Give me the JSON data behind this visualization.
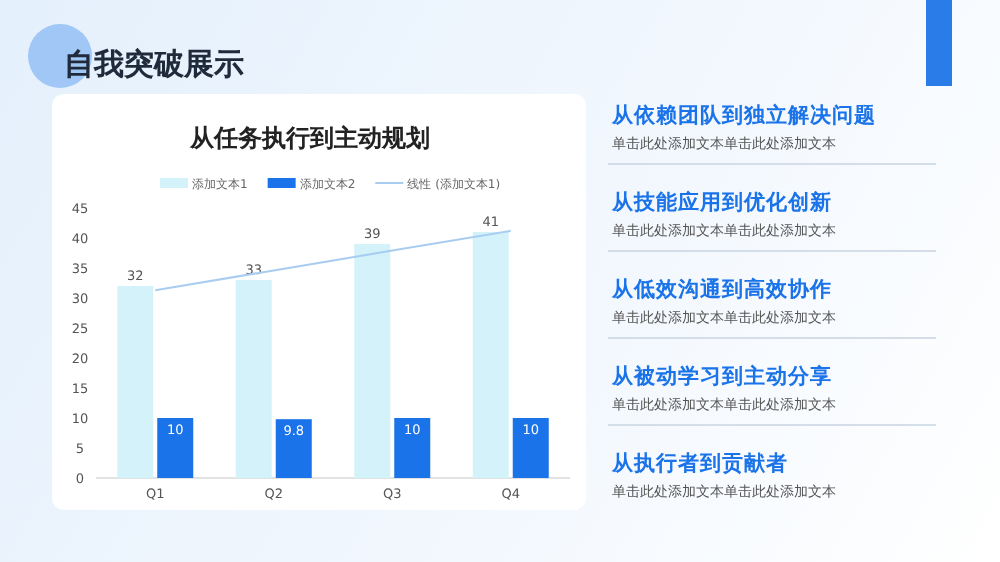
{
  "chart_data": {
    "type": "bar",
    "title": "从任务执行到主动规划",
    "categories": [
      "Q1",
      "Q2",
      "Q3",
      "Q4"
    ],
    "series": [
      {
        "name": "添加文本1",
        "color": "#d4f2f9",
        "values": [
          32,
          33,
          39,
          41
        ],
        "value_labels": [
          "32",
          "33",
          "39",
          "41"
        ]
      },
      {
        "name": "添加文本2",
        "color": "#1a73e8",
        "values": [
          10,
          9.8,
          10,
          10
        ],
        "value_labels": [
          "10",
          "9.8",
          "10",
          "10"
        ]
      },
      {
        "name": "线性 (添加文本1)",
        "type": "line",
        "color": "#a8cdf0",
        "values": [
          31.3,
          34.6,
          37.9,
          41.2
        ]
      }
    ],
    "ylim": [
      0,
      45
    ],
    "yticks": [
      0,
      5,
      10,
      15,
      20,
      25,
      30,
      35,
      40,
      45
    ],
    "grid": false,
    "legend": "top",
    "annotations": [
      "自我突破展示",
      "从依赖团队到独立解决问题",
      "单击此处添加文本单击此处添加文本",
      "从技能应用到优化创新",
      "单击此处添加文本单击此处添加文本",
      "从低效沟通到高效协作",
      "单击此处添加文本单击此处添加文本",
      "从被动学习到主动分享",
      "单击此处添加文本单击此处添加文本",
      "从执行者到贡献者",
      "单击此处添加文本单击此处添加文本"
    ]
  }
}
